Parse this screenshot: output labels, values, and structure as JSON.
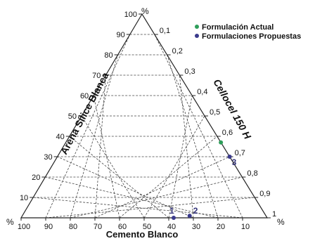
{
  "chart_data": {
    "type": "scatter",
    "subtype": "ternary",
    "axes": {
      "left": {
        "label": "Arena Sílice Blanca",
        "ticks": [
          "10",
          "20",
          "30",
          "40",
          "50",
          "60",
          "70",
          "80",
          "90",
          "100"
        ],
        "unit": "%"
      },
      "right": {
        "label": "Cellocel 150 H",
        "ticks": [
          "0,1",
          "0,2",
          "0,3",
          "0,4",
          "0,5",
          "0,6",
          "0,7",
          "0,8",
          "0,9",
          "1"
        ],
        "unit": "%"
      },
      "bottom": {
        "label": "Cemento Blanco",
        "ticks": [
          "100",
          "90",
          "80",
          "70",
          "60",
          "50",
          "40",
          "30",
          "20",
          "10"
        ],
        "unit": "%",
        "left_corner_unit": "%"
      }
    },
    "grid": true,
    "legend": {
      "placement": "top-right",
      "entries": [
        {
          "name": "Formulación Actual",
          "color": "#2e9e5a"
        },
        {
          "name": "Formulaciones Propuestas",
          "color": "#3a3a8c"
        }
      ]
    },
    "series": [
      {
        "name": "Formulación Actual",
        "color": "#2e9e5a",
        "points": [
          {
            "label": "",
            "arena": 37,
            "cellocel": 0.63,
            "cemento": 0.37
          }
        ]
      },
      {
        "name": "Formulaciones Propuestas",
        "color": "#3a3a8c",
        "points": [
          {
            "label": "3",
            "arena": 30,
            "cellocel": 0.7,
            "cemento": 0.3
          },
          {
            "label": "1",
            "arena": 0,
            "cellocel": 0.62,
            "cemento": 0.38
          },
          {
            "label": "2",
            "arena": 1,
            "cellocel": 0.68,
            "cemento": 0.31
          }
        ]
      }
    ]
  }
}
